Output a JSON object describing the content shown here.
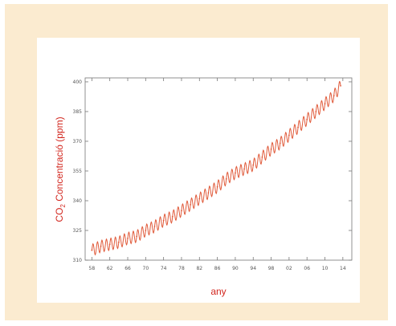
{
  "chart_data": {
    "type": "line",
    "title": "",
    "xlabel": "any",
    "ylabel_prefix": "CO",
    "ylabel_subscript": "2",
    "ylabel_suffix": " Concentració (ppm)",
    "xlim": [
      1956.5,
      2016
    ],
    "ylim": [
      310,
      402
    ],
    "x_tick_values": [
      1958,
      1962,
      1966,
      1970,
      1974,
      1978,
      1982,
      1986,
      1990,
      1994,
      1998,
      2002,
      2006,
      2010,
      2014
    ],
    "x_tick_labels": [
      "58",
      "62",
      "66",
      "70",
      "74",
      "78",
      "82",
      "86",
      "90",
      "94",
      "98",
      "02",
      "06",
      "10",
      "14"
    ],
    "y_tick_values": [
      310,
      325,
      340,
      355,
      370,
      385,
      400
    ],
    "y_tick_labels": [
      "310",
      "325",
      "340",
      "355",
      "370",
      "385",
      "400"
    ],
    "grid": false,
    "legend": "none",
    "line_color": "#e05a3a",
    "series": [
      {
        "seasonal_amplitude_ppm": 3,
        "x": [
          1958,
          1960,
          1962,
          1964,
          1966,
          1968,
          1970,
          1972,
          1974,
          1976,
          1978,
          1980,
          1982,
          1984,
          1986,
          1988,
          1990,
          1992,
          1994,
          1996,
          1998,
          2000,
          2002,
          2004,
          2006,
          2008,
          2010,
          2012,
          2013.5
        ],
        "values": [
          315,
          317,
          318,
          319,
          321,
          322,
          325,
          327,
          330,
          332,
          335,
          338,
          341,
          344,
          347,
          351,
          354,
          356,
          358,
          362,
          366,
          369,
          373,
          377,
          381,
          385,
          389,
          393,
          398
        ]
      }
    ]
  }
}
